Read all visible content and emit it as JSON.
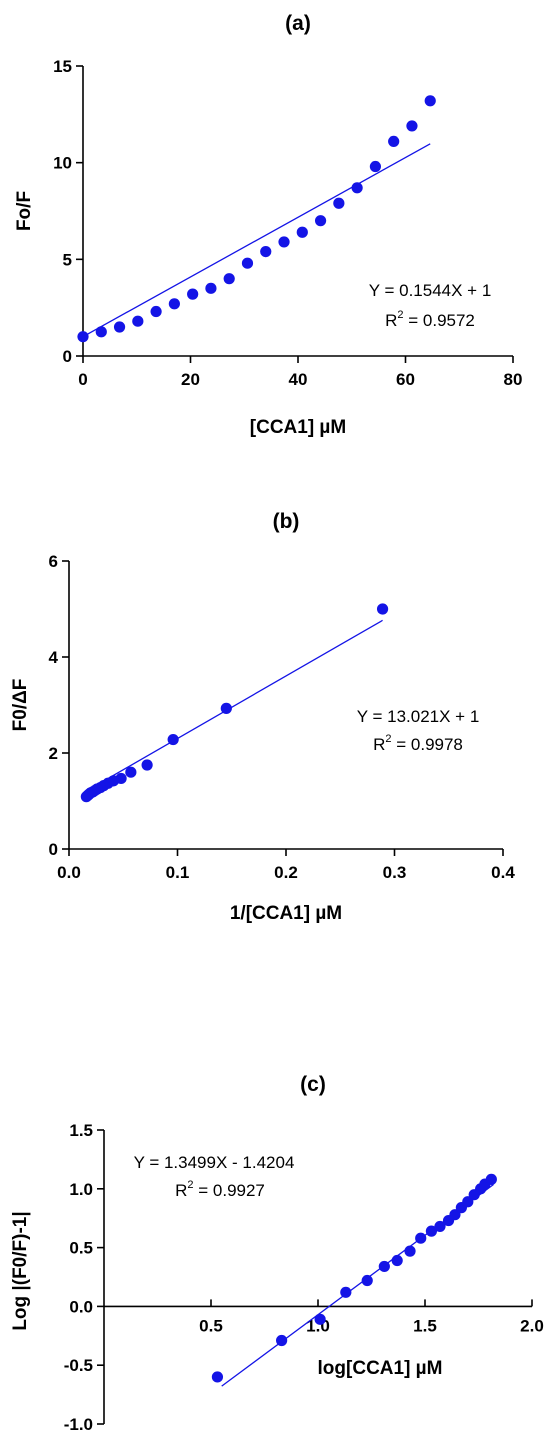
{
  "colors": {
    "series": "#1414e6",
    "fit": "#1414e6",
    "axis": "#000000"
  },
  "chart_data": [
    {
      "type": "scatter",
      "title": "(a)",
      "xlabel": "[CCA1] µM",
      "ylabel": "Fo/F",
      "xlim": [
        0,
        80
      ],
      "ylim": [
        0,
        15
      ],
      "xticks": [
        0,
        20,
        40,
        60,
        80
      ],
      "yticks": [
        0,
        5,
        10,
        15
      ],
      "grid": false,
      "series": [
        {
          "x": [
            0,
            3.4,
            6.8,
            10.2,
            13.6,
            17.0,
            20.4,
            23.8,
            27.2,
            30.6,
            34.0,
            37.4,
            40.8,
            44.2,
            47.6,
            51.0,
            54.4,
            57.8,
            61.2,
            64.6
          ],
          "y": [
            1.0,
            1.25,
            1.5,
            1.8,
            2.3,
            2.7,
            3.2,
            3.5,
            4.0,
            4.8,
            5.4,
            5.9,
            6.4,
            7.0,
            7.9,
            8.7,
            9.8,
            11.1,
            11.9,
            13.2
          ]
        }
      ],
      "fit": {
        "slope": 0.1544,
        "intercept": 1,
        "x_range": [
          0,
          64.6
        ]
      },
      "annotations": {
        "equation": "Y = 0.1544X + 1",
        "r2_prefix": "R",
        "r2_exp": "2",
        "r2_value": " = 0.9572"
      }
    },
    {
      "type": "scatter",
      "title": "(b)",
      "xlabel": "1/[CCA1] µM",
      "ylabel": "F0/ΔF",
      "xlim": [
        0,
        0.4
      ],
      "ylim": [
        0,
        6
      ],
      "xticks": [
        "0.0",
        "0.1",
        "0.2",
        "0.3",
        "0.4"
      ],
      "yticks": [
        0,
        2,
        4,
        6
      ],
      "grid": false,
      "series": [
        {
          "x": [
            0.289,
            0.145,
            0.096,
            0.072,
            0.057,
            0.048,
            0.041,
            0.036,
            0.032,
            0.029,
            0.026,
            0.024,
            0.022,
            0.02,
            0.019,
            0.018,
            0.017,
            0.016
          ],
          "y": [
            5.0,
            2.93,
            2.28,
            1.75,
            1.6,
            1.47,
            1.42,
            1.37,
            1.32,
            1.28,
            1.25,
            1.22,
            1.19,
            1.17,
            1.15,
            1.13,
            1.11,
            1.09
          ]
        }
      ],
      "fit": {
        "slope": 13.021,
        "intercept": 1,
        "x_range": [
          0.016,
          0.289
        ]
      },
      "annotations": {
        "equation": "Y = 13.021X + 1",
        "r2_prefix": "R",
        "r2_exp": "2",
        "r2_value": " = 0.9978"
      }
    },
    {
      "type": "scatter",
      "title": "(c)",
      "xlabel": "log[CCA1] µM",
      "ylabel": "Log |(F0/F)-1|",
      "xlim": [
        0,
        2.0
      ],
      "ylim": [
        -1.0,
        1.5
      ],
      "xticks": [
        "0.5",
        "1.0",
        "1.5",
        "2.0"
      ],
      "yticks": [
        "-1.0",
        "-0.5",
        "0.0",
        "0.5",
        "1.0",
        "1.5"
      ],
      "grid": false,
      "series": [
        {
          "x": [
            0.53,
            0.83,
            1.01,
            1.13,
            1.23,
            1.31,
            1.37,
            1.43,
            1.48,
            1.53,
            1.57,
            1.61,
            1.64,
            1.67,
            1.7,
            1.73,
            1.76,
            1.78,
            1.81
          ],
          "y": [
            -0.6,
            -0.29,
            -0.11,
            0.12,
            0.22,
            0.34,
            0.39,
            0.47,
            0.58,
            0.64,
            0.68,
            0.73,
            0.78,
            0.84,
            0.89,
            0.95,
            1.0,
            1.04,
            1.08
          ]
        }
      ],
      "fit": {
        "slope": 1.3499,
        "intercept": -1.4204,
        "x_range": [
          0.55,
          1.82
        ]
      },
      "annotations": {
        "equation": "Y = 1.3499X - 1.4204",
        "r2_prefix": "R",
        "r2_exp": "2",
        "r2_value": " = 0.9927"
      }
    }
  ]
}
